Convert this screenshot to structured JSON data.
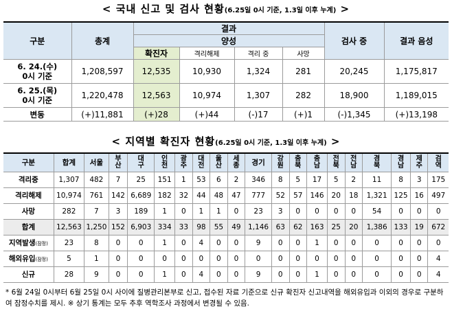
{
  "title1": {
    "main": "< 국내 신고 및 검사 현황",
    "sub": "(6.25일 0시 기준, 1.3일 이후 누계)",
    "end": " >"
  },
  "t1": {
    "h_gubun": "구분",
    "h_total": "총계",
    "h_result": "결과",
    "h_positive": "양성",
    "h_confirmed": "확진자",
    "h_released": "격리해제",
    "h_isolating": "격리 중",
    "h_death": "사망",
    "h_testing": "검사 중",
    "h_negative": "결과 음성",
    "rows": [
      {
        "label1": "6. 24.(수)",
        "label2": "0시 기준",
        "total": "1,208,597",
        "confirmed": "12,535",
        "released": "10,930",
        "isolating": "1,324",
        "death": "281",
        "testing": "20,245",
        "negative": "1,175,817"
      },
      {
        "label1": "6. 25.(목)",
        "label2": "0시 기준",
        "total": "1,220,478",
        "confirmed": "12,563",
        "released": "10,974",
        "isolating": "1,307",
        "death": "282",
        "testing": "18,900",
        "negative": "1,189,015"
      },
      {
        "label1": "변동",
        "label2": "",
        "total": "(+)11,881",
        "confirmed": "(+)28",
        "released": "(+)44",
        "isolating": "(-)17",
        "death": "(+)1",
        "testing": "(-)1,345",
        "negative": "(+)13,198"
      }
    ]
  },
  "title2": {
    "main": "< 지역별 확진자 현황",
    "sub": "(6.25일 0시 기준, 1.3일 이후 누계)",
    "end": " >"
  },
  "t2": {
    "headers": [
      "구분",
      "합계",
      "서울",
      "부산",
      "대구",
      "인천",
      "광주",
      "대전",
      "울산",
      "세종",
      "경기",
      "강원",
      "충북",
      "충남",
      "전북",
      "전남",
      "경북",
      "경남",
      "제주",
      "검역"
    ],
    "rows": [
      {
        "label": "격리중",
        "sub": "",
        "cells": [
          "1,307",
          "482",
          "7",
          "25",
          "151",
          "1",
          "53",
          "6",
          "2",
          "346",
          "8",
          "5",
          "17",
          "5",
          "2",
          "11",
          "8",
          "3",
          "175"
        ]
      },
      {
        "label": "격리해제",
        "sub": "",
        "cells": [
          "10,974",
          "761",
          "142",
          "6,689",
          "182",
          "32",
          "44",
          "48",
          "47",
          "777",
          "52",
          "57",
          "146",
          "20",
          "18",
          "1,321",
          "125",
          "16",
          "497"
        ]
      },
      {
        "label": "사망",
        "sub": "",
        "cells": [
          "282",
          "7",
          "3",
          "189",
          "1",
          "0",
          "1",
          "1",
          "0",
          "23",
          "3",
          "0",
          "0",
          "0",
          "0",
          "54",
          "0",
          "0",
          "0"
        ]
      },
      {
        "label": "합계",
        "sub": "",
        "cells": [
          "12,563",
          "1,250",
          "152",
          "6,903",
          "334",
          "33",
          "98",
          "55",
          "49",
          "1,146",
          "63",
          "62",
          "163",
          "25",
          "20",
          "1,386",
          "133",
          "19",
          "672"
        ]
      },
      {
        "label": "지역발생",
        "sub": "(잠정)",
        "cells": [
          "23",
          "8",
          "0",
          "0",
          "1",
          "0",
          "4",
          "0",
          "0",
          "9",
          "0",
          "0",
          "1",
          "0",
          "0",
          "0",
          "0",
          "0",
          "0"
        ]
      },
      {
        "label": "해외유입",
        "sub": "(잠정)",
        "cells": [
          "5",
          "1",
          "0",
          "0",
          "0",
          "0",
          "0",
          "0",
          "0",
          "0",
          "0",
          "0",
          "0",
          "0",
          "0",
          "0",
          "0",
          "0",
          "4"
        ]
      },
      {
        "label": "신규",
        "sub": "",
        "cells": [
          "28",
          "9",
          "0",
          "0",
          "1",
          "0",
          "4",
          "0",
          "0",
          "9",
          "0",
          "0",
          "1",
          "0",
          "0",
          "0",
          "0",
          "0",
          "4"
        ]
      }
    ]
  },
  "footnote": "* 6월 24일 0시부터 6월 25일 0시 사이에 질병관리본부로 신고, 접수된 자료 기준으로 신규 확진자 신고내역을 해외유입과 이외의 경우로 구분하여 잠정수치를 제시. ※ 상기 통계는 모두 추후 역학조사 과정에서 변경될 수 있음."
}
